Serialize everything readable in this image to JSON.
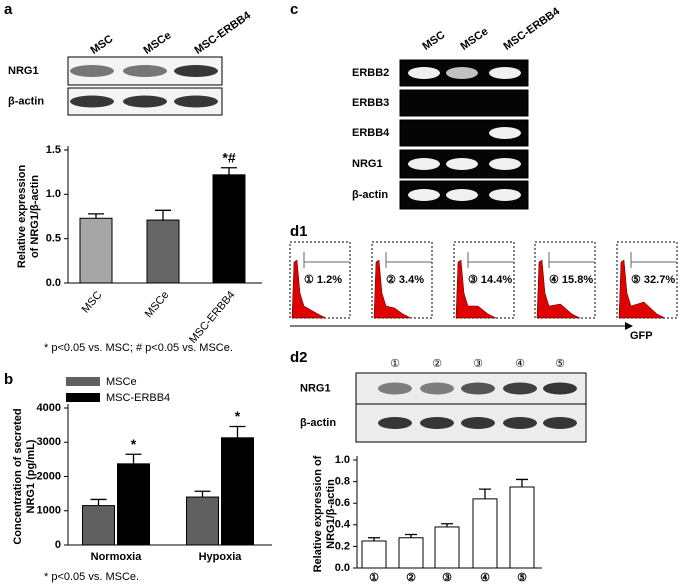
{
  "panels": {
    "a": "a",
    "b": "b",
    "c": "c",
    "d1": "d1",
    "d2": "d2"
  },
  "blot_a": {
    "lanes": [
      "MSC",
      "MSCe",
      "MSC-ERBB4"
    ],
    "rows": [
      "NRG1",
      "β-actin"
    ]
  },
  "blot_c": {
    "lanes": [
      "MSC",
      "MSCe",
      "MSC-ERBB4"
    ],
    "rows": [
      "ERBB2",
      "ERBB3",
      "ERBB4",
      "NRG1",
      "β-actin"
    ]
  },
  "flow": {
    "gates": [
      "① 1.2%",
      "② 3.4%",
      "③ 14.4%",
      "④ 15.8%",
      "⑤ 32.7%"
    ],
    "x_label": "GFP"
  },
  "blot_d2": {
    "lanes": [
      "①",
      "②",
      "③",
      "④",
      "⑤"
    ],
    "rows": [
      "NRG1",
      "β-actin"
    ]
  },
  "chart_data": [
    {
      "type": "bar",
      "y_label": [
        "Relative expression",
        "of NRG1/β-actin"
      ],
      "categories": [
        "MSC",
        "MSCe",
        "MSC-ERBB4"
      ],
      "values": [
        0.73,
        0.71,
        1.22
      ],
      "errors": [
        0.05,
        0.11,
        0.08
      ],
      "colors": [
        "#a6a6a6",
        "#666666",
        "#000000"
      ],
      "annotations": [
        "*#"
      ],
      "ylim": [
        0,
        1.5
      ],
      "yticks": [
        {
          "value": 0,
          "label": "0.0"
        },
        {
          "value": 0.5,
          "label": "0.5"
        },
        {
          "value": 1,
          "label": "1.0"
        },
        {
          "value": 1.5,
          "label": "1.5"
        }
      ],
      "footnote": "* p<0.05 vs. MSC; # p<0.05 vs. MSCe."
    },
    {
      "type": "grouped-bar",
      "y_label": [
        "Concentration of secreted",
        "NRG1 (pg/mL)"
      ],
      "categories": [
        "Normoxia",
        "Hypoxia"
      ],
      "series": [
        {
          "name": "MSCe",
          "color": "#606060",
          "values": [
            1150,
            1400
          ],
          "errors": [
            180,
            170
          ]
        },
        {
          "name": "MSC-ERBB4",
          "color": "#000000",
          "values": [
            2370,
            3130
          ],
          "errors": [
            280,
            330
          ]
        }
      ],
      "annotations": [
        "*",
        "*"
      ],
      "ylim": [
        0,
        4000
      ],
      "yticks": [
        0,
        1000,
        2000,
        3000,
        4000
      ],
      "footnote": "* p<0.05 vs. MSCe."
    },
    {
      "type": "bar",
      "y_label": [
        "Relative expression of",
        "NRG1/β-actin"
      ],
      "categories": [
        "①",
        "②",
        "③",
        "④",
        "⑤"
      ],
      "values": [
        0.25,
        0.28,
        0.38,
        0.64,
        0.75
      ],
      "errors": [
        0.03,
        0.03,
        0.03,
        0.09,
        0.07
      ],
      "colors": [
        "#ffffff",
        "#ffffff",
        "#ffffff",
        "#ffffff",
        "#ffffff"
      ],
      "ylim": [
        0,
        1
      ],
      "yticks": [
        {
          "value": 0,
          "label": "0.0"
        },
        {
          "value": 0.2,
          "label": "0.2"
        },
        {
          "value": 0.4,
          "label": "0.4"
        },
        {
          "value": 0.6,
          "label": "0.6"
        },
        {
          "value": 0.8,
          "label": "0.8"
        },
        {
          "value": 1,
          "label": "1.0"
        }
      ]
    }
  ]
}
